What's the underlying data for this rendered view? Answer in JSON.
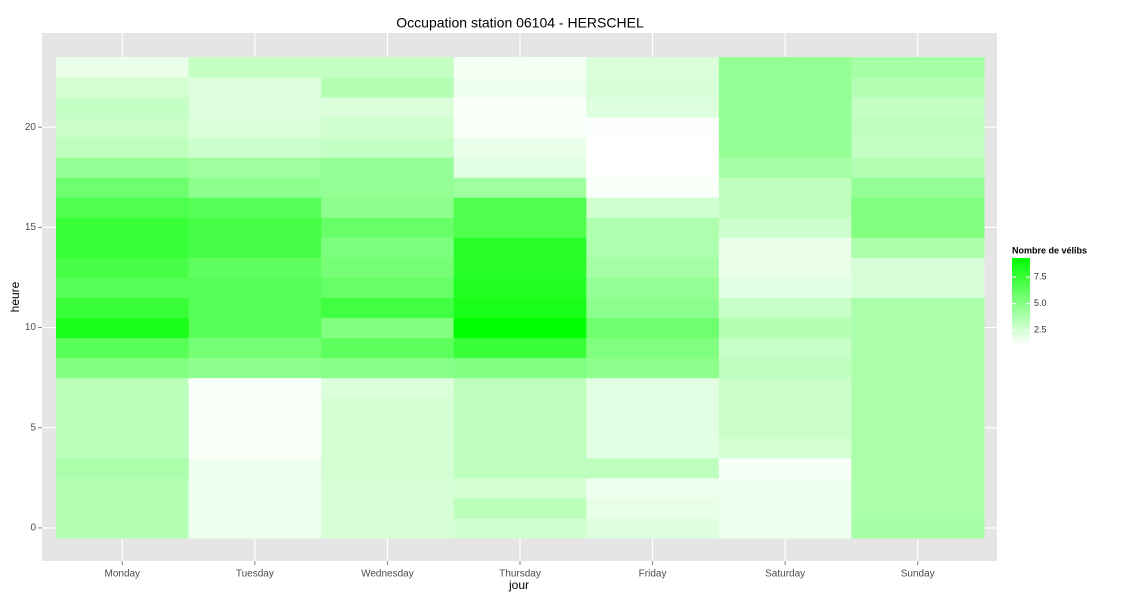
{
  "chart_data": {
    "type": "heatmap",
    "title": "Occupation station 06104 - HERSCHEL",
    "x_label": "jour",
    "y_label": "heure",
    "categories": [
      "Monday",
      "Tuesday",
      "Wednesday",
      "Thursday",
      "Friday",
      "Saturday",
      "Sunday"
    ],
    "y": [
      0,
      1,
      2,
      3,
      4,
      5,
      6,
      7,
      8,
      9,
      10,
      11,
      12,
      13,
      14,
      15,
      16,
      17,
      18,
      19,
      20,
      21,
      22,
      23
    ],
    "values": [
      [
        3.5,
        3.5,
        3.5,
        3.8,
        3.3,
        3.3,
        3.3,
        3.3,
        5.2,
        6.5,
        8.5,
        7.5,
        6.5,
        7,
        7.5,
        7.5,
        6.8,
        5.8,
        4.5,
        3.2,
        2.8,
        3,
        2.5,
        1.8
      ],
      [
        1.6,
        1.6,
        1.6,
        1.6,
        1.3,
        1.3,
        1.3,
        1.3,
        4.8,
        5.5,
        6.5,
        6.5,
        6.5,
        6.2,
        7,
        7,
        6.5,
        4.8,
        4.2,
        2.7,
        2.3,
        2.2,
        2.2,
        3
      ],
      [
        2.4,
        2.4,
        2.4,
        2.5,
        2.5,
        2.5,
        2.5,
        2.3,
        5,
        6.3,
        5.2,
        7.2,
        6,
        5.5,
        5.3,
        6,
        4.8,
        4.5,
        4.5,
        3,
        2.6,
        2.3,
        3.5,
        3
      ],
      [
        2.6,
        3.3,
        2.5,
        3.2,
        3.2,
        3.2,
        3.2,
        3.2,
        5.2,
        7.5,
        9.3,
        8.5,
        8.2,
        8,
        8,
        6.8,
        6.8,
        4.2,
        2,
        1.8,
        1.3,
        1.3,
        1.6,
        1.5
      ],
      [
        2.2,
        1.9,
        1.6,
        3.2,
        2,
        2,
        2,
        2,
        4.8,
        5.2,
        5.8,
        4.8,
        4.5,
        4,
        3.7,
        3.7,
        2.6,
        1.3,
        1.1,
        1.1,
        1.2,
        2.2,
        2.4,
        2.3
      ],
      [
        1.6,
        1.6,
        1.6,
        1.4,
        2.5,
        2.8,
        2.8,
        2.8,
        3.2,
        2.9,
        3.5,
        2.9,
        2,
        1.8,
        1.8,
        2.7,
        3.2,
        3.2,
        4,
        4.5,
        4.5,
        4.5,
        4.5,
        4.5
      ],
      [
        4,
        3.8,
        3.8,
        3.8,
        3.8,
        3.8,
        3.8,
        3.8,
        3.8,
        3.8,
        3.8,
        3.8,
        2.4,
        2.4,
        3.8,
        5.2,
        5.2,
        4.5,
        3.5,
        3,
        3.2,
        3,
        3.5,
        4
      ]
    ],
    "ylim": [
      -1.65,
      24.7
    ],
    "yticks": [
      0,
      5,
      10,
      15,
      20
    ],
    "grid": true,
    "color_low": "#ffffff",
    "color_high": "#00ff00",
    "legend": {
      "title": "Nombre de vélibs",
      "zlim": [
        1.1,
        9.3
      ],
      "ticks": [
        2.5,
        {
          "value": 5,
          "label": "5.0"
        },
        7.5
      ]
    }
  }
}
